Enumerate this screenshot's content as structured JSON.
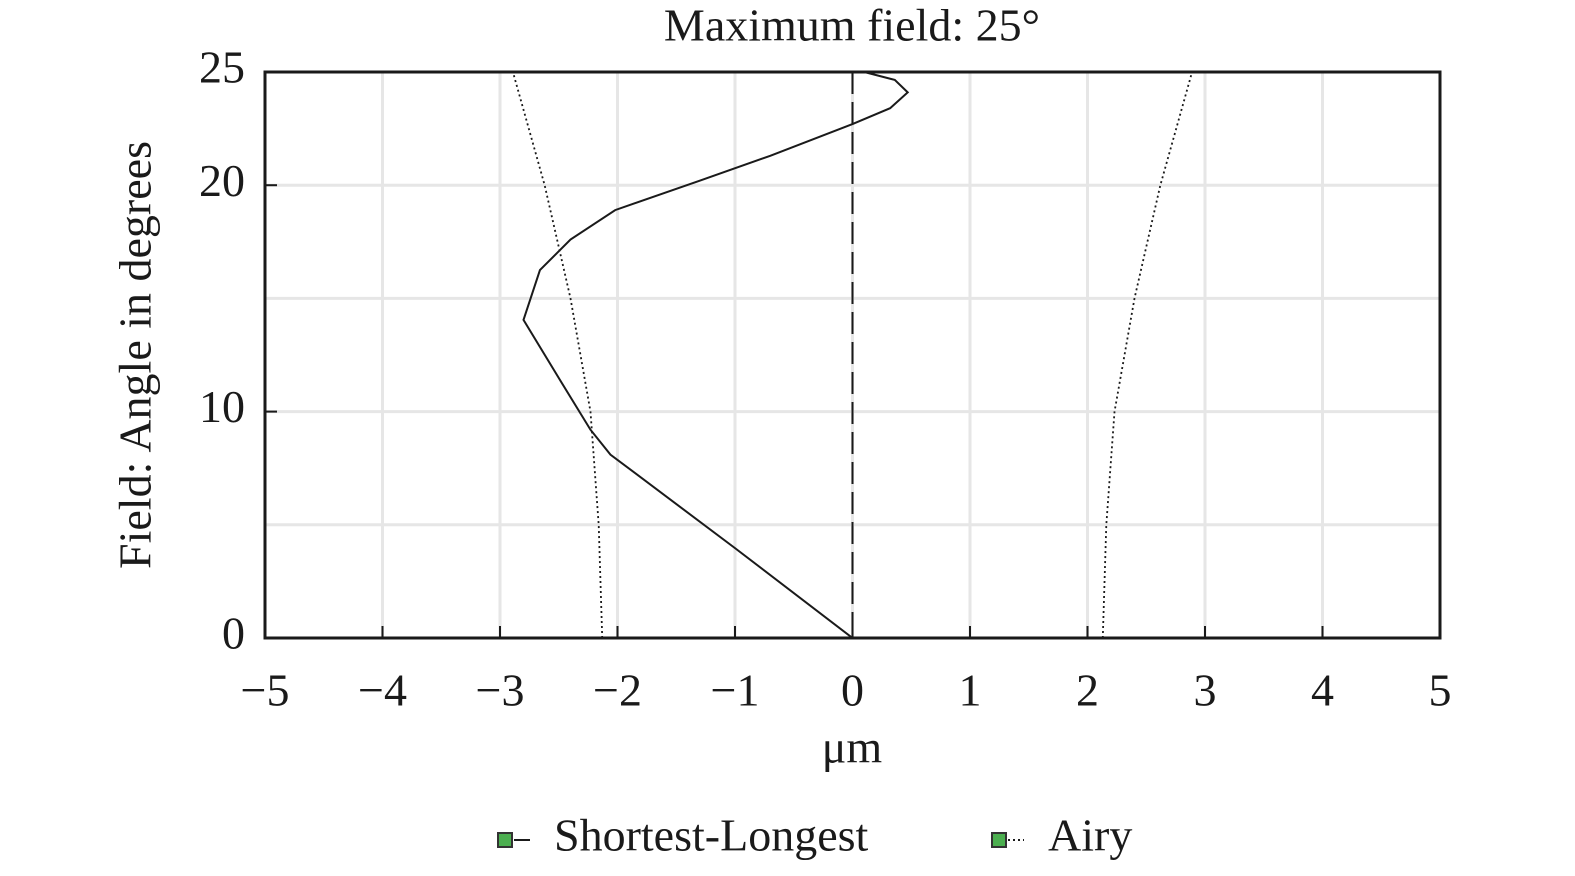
{
  "chart_data": {
    "type": "line",
    "title": "Maximum field: 25°",
    "x_label": "μm",
    "y_label": "Field: Angle in degrees",
    "xlim": [
      -5,
      5
    ],
    "ylim": [
      0,
      25
    ],
    "xticks": [
      {
        "value": -5,
        "label": "−5"
      },
      {
        "value": -4,
        "label": "−4"
      },
      {
        "value": -3,
        "label": "−3"
      },
      {
        "value": -2,
        "label": "−2"
      },
      {
        "value": -1,
        "label": "−1"
      },
      0,
      1,
      2,
      3,
      4,
      5
    ],
    "yticks": [
      0,
      10,
      20,
      25
    ],
    "y_minor_grid": [
      5,
      15
    ],
    "grid": true,
    "vline_x": 0,
    "series": [
      {
        "name": "Shortest-Longest",
        "color": "#1a1a1a",
        "dash": "solid",
        "branches": [
          {
            "x": [
              0,
              -1.0,
              -2.06,
              -2.23,
              -2.49,
              -2.8,
              -2.66,
              -2.4,
              -2.02,
              -1.3,
              -0.7,
              0,
              0.32,
              0.47,
              0.36,
              0.1
            ],
            "y": [
              0,
              3.97,
              8.1,
              9.2,
              11.4,
              14.05,
              16.25,
              17.6,
              18.9,
              20.2,
              21.3,
              22.7,
              23.4,
              24.1,
              24.65,
              25
            ]
          }
        ]
      },
      {
        "name": "Airy",
        "color": "#1a1a1a",
        "dash": "dotted",
        "branches": [
          {
            "x": [
              -2.13,
              -2.16,
              -2.23,
              -2.4,
              -2.62,
              -2.89
            ],
            "y": [
              0,
              5,
              10,
              15,
              20,
              25
            ]
          },
          {
            "x": [
              2.13,
              2.16,
              2.23,
              2.4,
              2.62,
              2.89
            ],
            "y": [
              0,
              5,
              10,
              15,
              20,
              25
            ]
          }
        ]
      }
    ]
  }
}
